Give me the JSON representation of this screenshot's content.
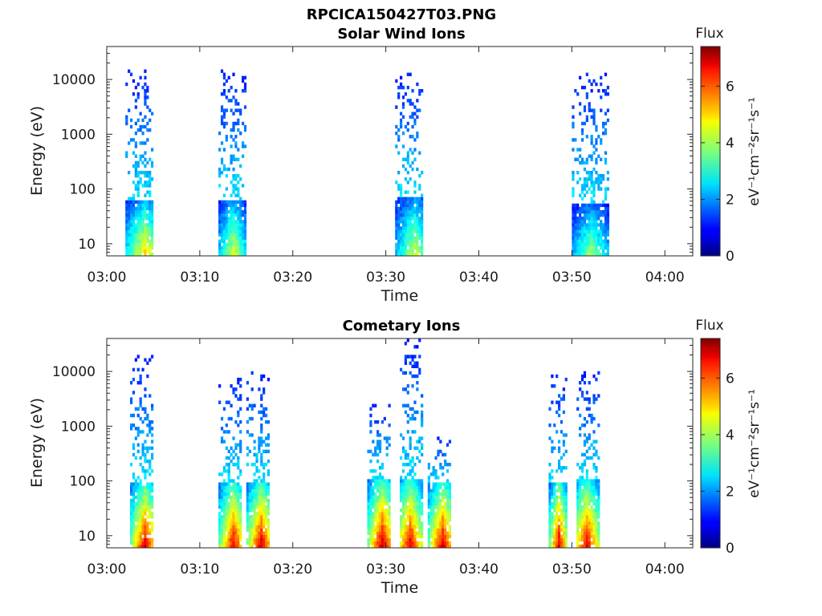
{
  "figure_title": "RPCICA150427T03.PNG",
  "colorbar_title": "Flux",
  "colorbar_label": "eV⁻¹cm⁻²sr⁻¹s⁻¹",
  "chart_data": [
    {
      "type": "heatmap",
      "title": "Solar Wind Ions",
      "xlabel": "Time",
      "ylabel": "Energy (eV)",
      "y_scale": "log",
      "xlim": [
        "03:00",
        "04:03"
      ],
      "ylim": [
        6,
        40000
      ],
      "x_tick_labels": [
        "03:00",
        "03:10",
        "03:20",
        "03:30",
        "03:40",
        "03:50",
        "04:00"
      ],
      "y_tick_labels": [
        "10",
        "100",
        "1000",
        "10000"
      ],
      "colorbar": {
        "label": "eV⁻¹cm⁻²sr⁻¹s⁻¹",
        "title": "Flux",
        "range": [
          0,
          7.4
        ],
        "tick_labels": [
          "0",
          "2",
          "4",
          "6"
        ],
        "colormap": "jet"
      },
      "bursts": [
        {
          "start": "03:02",
          "end": "03:05",
          "peak_time": "03:04",
          "e_core_max": 60,
          "e_halo_max": 14000,
          "peak_flux": 5.0
        },
        {
          "start": "03:12",
          "end": "03:15",
          "peak_time": "03:13.5",
          "e_core_max": 60,
          "e_halo_max": 14000,
          "peak_flux": 4.5
        },
        {
          "start": "03:31",
          "end": "03:34",
          "peak_time": "03:33",
          "e_core_max": 70,
          "e_halo_max": 12000,
          "peak_flux": 4.3
        },
        {
          "start": "03:50",
          "end": "03:54",
          "peak_time": "03:52",
          "e_core_max": 50,
          "e_halo_max": 12000,
          "peak_flux": 4.0
        }
      ]
    },
    {
      "type": "heatmap",
      "title": "Cometary Ions",
      "xlabel": "Time",
      "ylabel": "Energy (eV)",
      "y_scale": "log",
      "xlim": [
        "03:00",
        "04:03"
      ],
      "ylim": [
        6,
        40000
      ],
      "x_tick_labels": [
        "03:00",
        "03:10",
        "03:20",
        "03:30",
        "03:40",
        "03:50",
        "04:00"
      ],
      "y_tick_labels": [
        "10",
        "100",
        "1000",
        "10000"
      ],
      "colorbar": {
        "label": "eV⁻¹cm⁻²sr⁻¹s⁻¹",
        "title": "Flux",
        "range": [
          0,
          7.4
        ],
        "tick_labels": [
          "0",
          "2",
          "4",
          "6"
        ],
        "colormap": "jet"
      },
      "bursts": [
        {
          "start": "03:02.5",
          "end": "03:05",
          "peak_time": "03:04",
          "e_core_max": 90,
          "e_halo_max": 18000,
          "peak_flux": 6.8
        },
        {
          "start": "03:12",
          "end": "03:14.5",
          "peak_time": "03:13.5",
          "e_core_max": 90,
          "e_halo_max": 7000,
          "peak_flux": 6.7
        },
        {
          "start": "03:15",
          "end": "03:17.5",
          "peak_time": "03:16.5",
          "e_core_max": 90,
          "e_halo_max": 10000,
          "peak_flux": 6.9
        },
        {
          "start": "03:28",
          "end": "03:30.5",
          "peak_time": "03:29.5",
          "e_core_max": 100,
          "e_halo_max": 2500,
          "peak_flux": 7.0
        },
        {
          "start": "03:31.5",
          "end": "03:34",
          "peak_time": "03:32.5",
          "e_core_max": 100,
          "e_halo_max": 38000,
          "peak_flux": 6.8
        },
        {
          "start": "03:34.5",
          "end": "03:37",
          "peak_time": "03:36",
          "e_core_max": 90,
          "e_halo_max": 600,
          "peak_flux": 6.9
        },
        {
          "start": "03:47.5",
          "end": "03:49.5",
          "peak_time": "03:48.5",
          "e_core_max": 90,
          "e_halo_max": 8500,
          "peak_flux": 6.8
        },
        {
          "start": "03:50.5",
          "end": "03:53",
          "peak_time": "03:51.5",
          "e_core_max": 100,
          "e_halo_max": 9000,
          "peak_flux": 6.7
        }
      ]
    }
  ]
}
